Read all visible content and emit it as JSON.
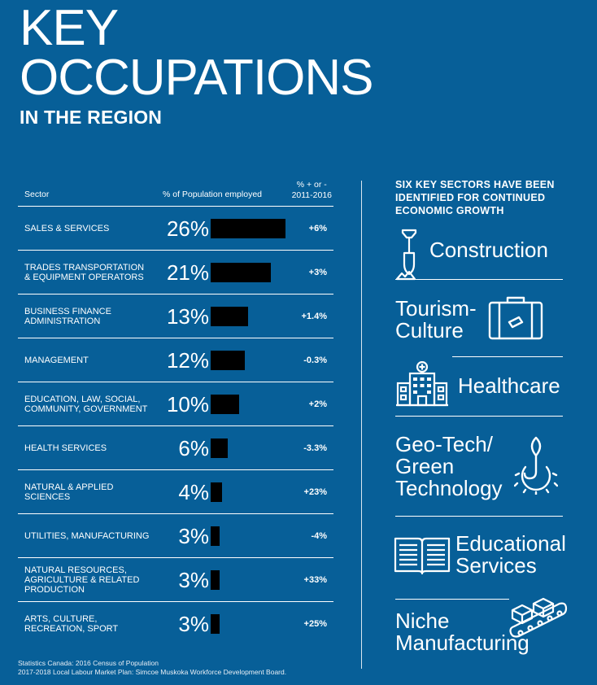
{
  "title": {
    "line1": "KEY",
    "line2": "OCCUPATIONS",
    "subtitle": "IN THE REGION"
  },
  "table": {
    "col_sector": "Sector",
    "col_population": "% of Population employed",
    "col_change_line1": "% + or -",
    "col_change_line2": "2011-2016"
  },
  "chart_data": {
    "type": "bar",
    "orientation": "horizontal",
    "categories": [
      "SALES & SERVICES",
      "TRADES TRANSPORTATION\n& EQUIPMENT OPERATORS",
      "BUSINESS FINANCE\nADMINISTRATION",
      "MANAGEMENT",
      "EDUCATION, LAW, SOCIAL,\nCOMMUNITY, GOVERNMENT",
      "HEALTH SERVICES",
      "NATURAL & APPLIED\nSCIENCES",
      "UTILITIES, MANUFACTURING",
      "NATURAL RESOURCES,\nAGRICULTURE & RELATED\nPRODUCTION",
      "ARTS, CULTURE,\nRECREATION, SPORT"
    ],
    "values": [
      26,
      21,
      13,
      12,
      10,
      6,
      4,
      3,
      3,
      3
    ],
    "value_labels": [
      "26%",
      "21%",
      "13%",
      "12%",
      "10%",
      "6%",
      "4%",
      "3%",
      "3%",
      "3%"
    ],
    "change_labels": [
      "+6%",
      "+3%",
      "+1.4%",
      "-0.3%",
      "+2%",
      "-3.3%",
      "+23%",
      "-4%",
      "+33%",
      "+25%"
    ],
    "change_values": [
      6,
      3,
      1.4,
      -0.3,
      2,
      -3.3,
      23,
      -4,
      33,
      25
    ],
    "xlim": [
      0,
      26
    ],
    "bar_color": "#000000",
    "grid": false
  },
  "sectors": {
    "heading": "SIX KEY SECTORS HAVE BEEN IDENTIFIED FOR CONTINUED ECONOMIC GROWTH",
    "items": [
      {
        "label_lines": [
          "Construction"
        ],
        "icon": "shovel-icon"
      },
      {
        "label_lines": [
          "Tourism-",
          "Culture"
        ],
        "icon": "suitcase-icon"
      },
      {
        "label_lines": [
          "Healthcare"
        ],
        "icon": "hospital-icon"
      },
      {
        "label_lines": [
          "Geo-Tech/",
          "Green",
          "Technology"
        ],
        "icon": "leaf-gear-icon"
      },
      {
        "label_lines": [
          "Educational",
          "Services"
        ],
        "icon": "open-book-icon"
      },
      {
        "label_lines": [
          "Niche",
          "Manufacturing"
        ],
        "icon": "conveyor-icon"
      }
    ]
  },
  "footnote": {
    "line1": "Statistics Canada: 2016 Census of Population",
    "line2": "2017-2018 Local Labour Market Plan: Simcoe Muskoka Workforce Development Board."
  },
  "colors": {
    "background": "#075f98",
    "text": "#ffffff",
    "bar": "#000000"
  }
}
